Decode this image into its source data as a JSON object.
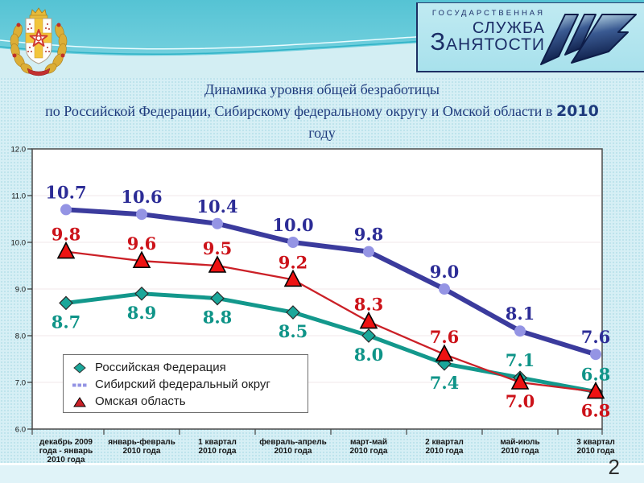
{
  "slide": {
    "page_number": "2",
    "title": {
      "line1": "Динамика уровня общей безработицы",
      "line2_prefix": "по Российской Федерации, Сибирскому федеральному округу и Омской области в ",
      "line2_bold": "2010",
      "line3": "году"
    }
  },
  "header": {
    "emblem_name": "omsk-oblast-coat-of-arms",
    "logo": {
      "line1": "ГОСУДАРСТВЕННАЯ",
      "line2": "СЛУЖБА",
      "line3_initial": "З",
      "line3_rest": "АНЯТОСТИ"
    }
  },
  "colors": {
    "title_text": "#1e3a7c",
    "logo_navy": "#1b2d66",
    "top_band_teal": "#5cc8d7",
    "slide_bg": "#d6eff5",
    "rf_teal": "#13988c",
    "sfo_indigo": "#3b3b9d",
    "omsk_red": "#cb2027"
  },
  "chart_data": {
    "type": "line",
    "title": "",
    "xlabel": "",
    "ylabel": "",
    "ylim": [
      6.0,
      12.0
    ],
    "ytick_labels": [
      "6.0",
      "7.0",
      "8.0",
      "9.0",
      "10.0",
      "11.0",
      "12.0"
    ],
    "grid": true,
    "legend_position": "inside-bottom-left",
    "categories": [
      [
        "декабрь 2009",
        "года - январь",
        "2010 года"
      ],
      [
        "январь-февраль",
        "2010 года"
      ],
      [
        "1 квартал",
        "2010 года"
      ],
      [
        "февраль-апрель",
        "2010 года"
      ],
      [
        "март-май",
        "2010 года"
      ],
      [
        "2 квартал",
        "2010 года"
      ],
      [
        "май-июль",
        "2010 года"
      ],
      [
        "3 квартал",
        "2010 года"
      ]
    ],
    "series": [
      {
        "name": "Российская Федерация",
        "values": [
          8.7,
          8.9,
          8.8,
          8.5,
          8.0,
          7.4,
          7.1,
          6.8
        ],
        "marker": "diamond",
        "line_color": "#13988c",
        "marker_fill": "#1aa79a",
        "marker_stroke": "#2a2a2a",
        "label_color": "#0f9488",
        "line_width": 5,
        "label_side": [
          "below",
          "below",
          "below",
          "below",
          "below",
          "below",
          "above",
          "above"
        ]
      },
      {
        "name": "Сибирский федеральный округ",
        "values": [
          10.7,
          10.6,
          10.4,
          10.0,
          9.8,
          9.0,
          8.1,
          7.6
        ],
        "marker": "circle",
        "line_color": "#3b3b9d",
        "marker_fill": "#9494e4",
        "marker_stroke": "none",
        "label_color": "#2c2c96",
        "line_width": 6,
        "label_side": [
          "above",
          "above",
          "above",
          "above",
          "above",
          "above",
          "above",
          "above"
        ]
      },
      {
        "name": "Омская область",
        "values": [
          9.8,
          9.6,
          9.5,
          9.2,
          8.3,
          7.6,
          7.0,
          6.8
        ],
        "marker": "triangle",
        "line_color": "#cb2027",
        "marker_fill": "#ee1212",
        "marker_stroke": "#000000",
        "label_color": "#cc1219",
        "line_width": 2.3,
        "label_side": [
          "above",
          "above",
          "above",
          "above",
          "above",
          "above",
          "below",
          "below"
        ]
      }
    ]
  }
}
